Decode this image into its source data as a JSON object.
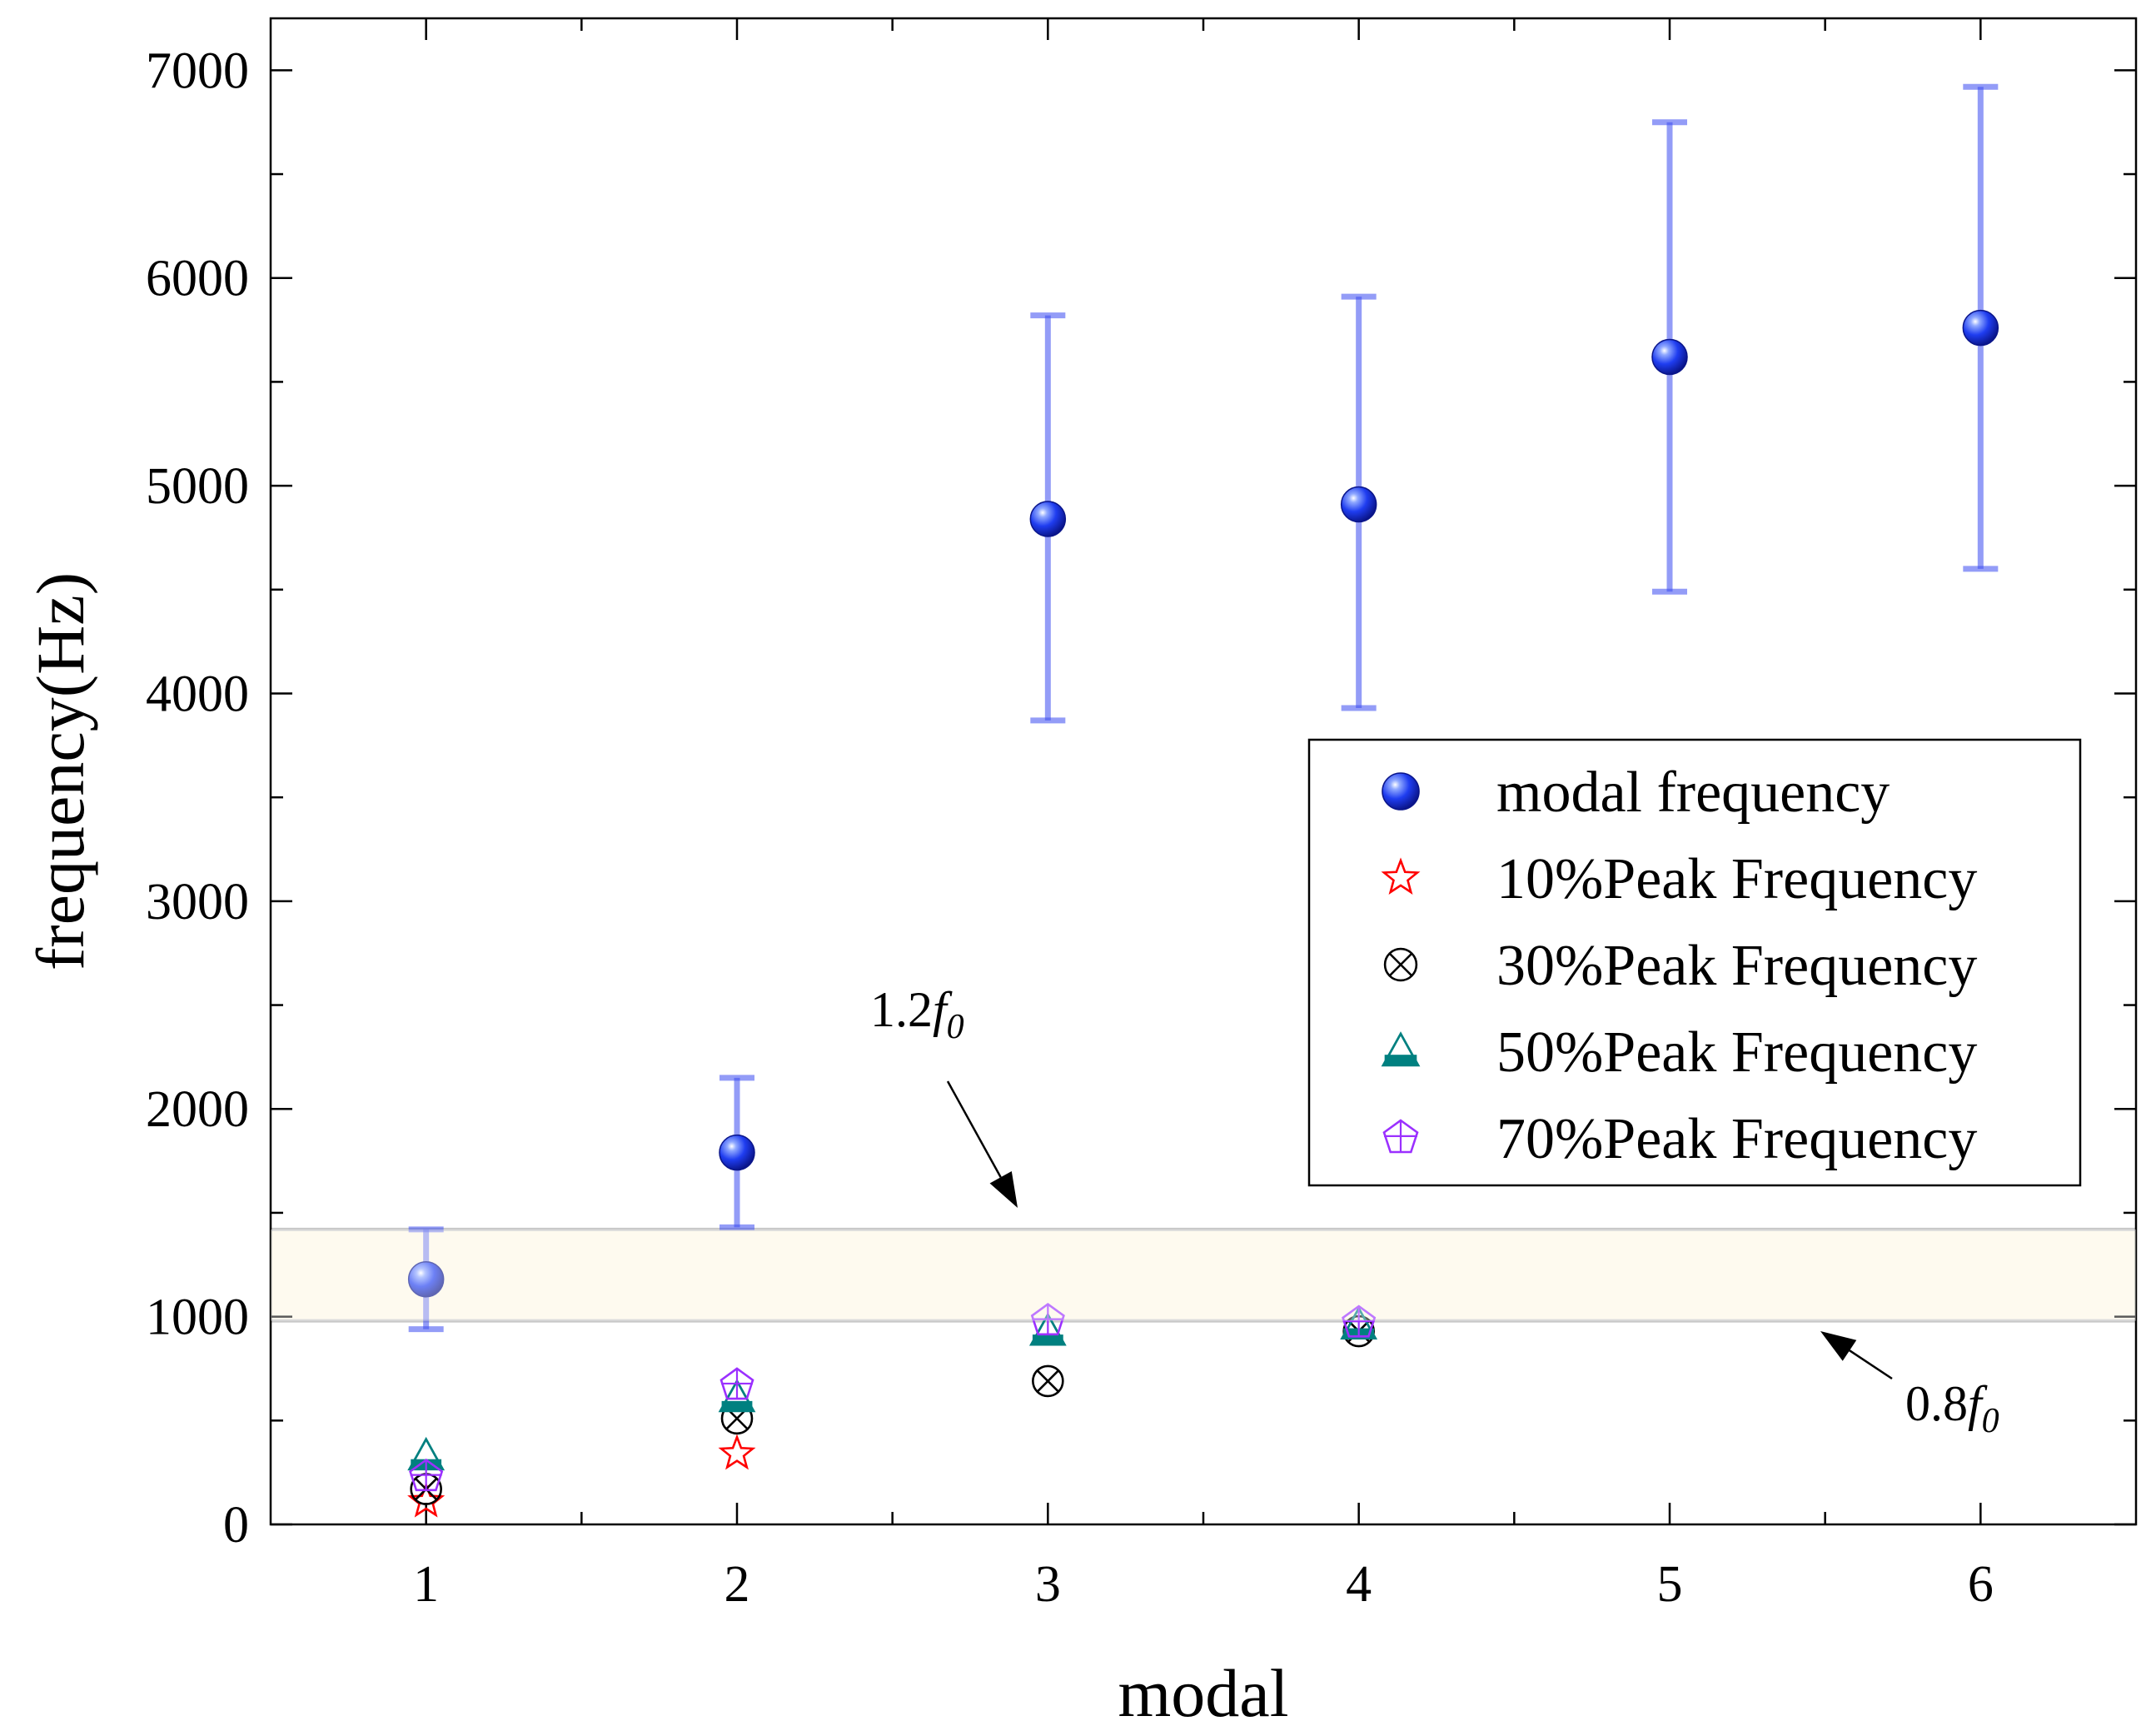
{
  "chart_data": {
    "type": "scatter",
    "title": "",
    "xlabel": "modal",
    "ylabel": "frequency(Hz)",
    "xlim": [
      0.5,
      6.5
    ],
    "ylim": [
      0,
      7250
    ],
    "x_ticks": [
      "1",
      "2",
      "3",
      "4",
      "5",
      "6"
    ],
    "y_ticks": [
      "0",
      "1000",
      "2000",
      "3000",
      "4000",
      "5000",
      "6000",
      "7000"
    ],
    "band": {
      "lower": 980,
      "upper": 1420,
      "color": "#fdf8e6",
      "edge_color": "#c8c8c8"
    },
    "annotations": [
      {
        "text_main": "1.2",
        "text_var": "f",
        "text_sub": "0",
        "refers_to": "upper band line"
      },
      {
        "text_main": "0.8",
        "text_var": "f",
        "text_sub": "0",
        "refers_to": "lower band line"
      }
    ],
    "series": [
      {
        "name": "modal  frequency",
        "marker": "sphere",
        "color": "#1a2fe0",
        "x": [
          1,
          2,
          3,
          4,
          5,
          6
        ],
        "y": [
          1180,
          1790,
          4840,
          4910,
          5620,
          5760
        ],
        "err_low": [
          940,
          1430,
          3870,
          3930,
          4490,
          4600
        ],
        "err_high": [
          1420,
          2150,
          5820,
          5910,
          6750,
          6920
        ]
      },
      {
        "name": "10%Peak Frequency",
        "marker": "star",
        "color": "#ff0000",
        "x": [
          1,
          2
        ],
        "y": [
          110,
          340
        ]
      },
      {
        "name": "30%Peak Frequency",
        "marker": "circle-x",
        "color": "#000000",
        "x": [
          1,
          2,
          3,
          4
        ],
        "y": [
          170,
          510,
          690,
          930
        ]
      },
      {
        "name": "50%Peak Frequency",
        "marker": "triangle",
        "color": "#008080",
        "x": [
          1,
          2,
          3,
          4
        ],
        "y": [
          330,
          610,
          930,
          960
        ]
      },
      {
        "name": "70%Peak Frequency",
        "marker": "pentagon-cross",
        "color": "#9b30ff",
        "x": [
          1,
          2,
          3,
          4
        ],
        "y": [
          230,
          670,
          980,
          970
        ]
      }
    ]
  }
}
